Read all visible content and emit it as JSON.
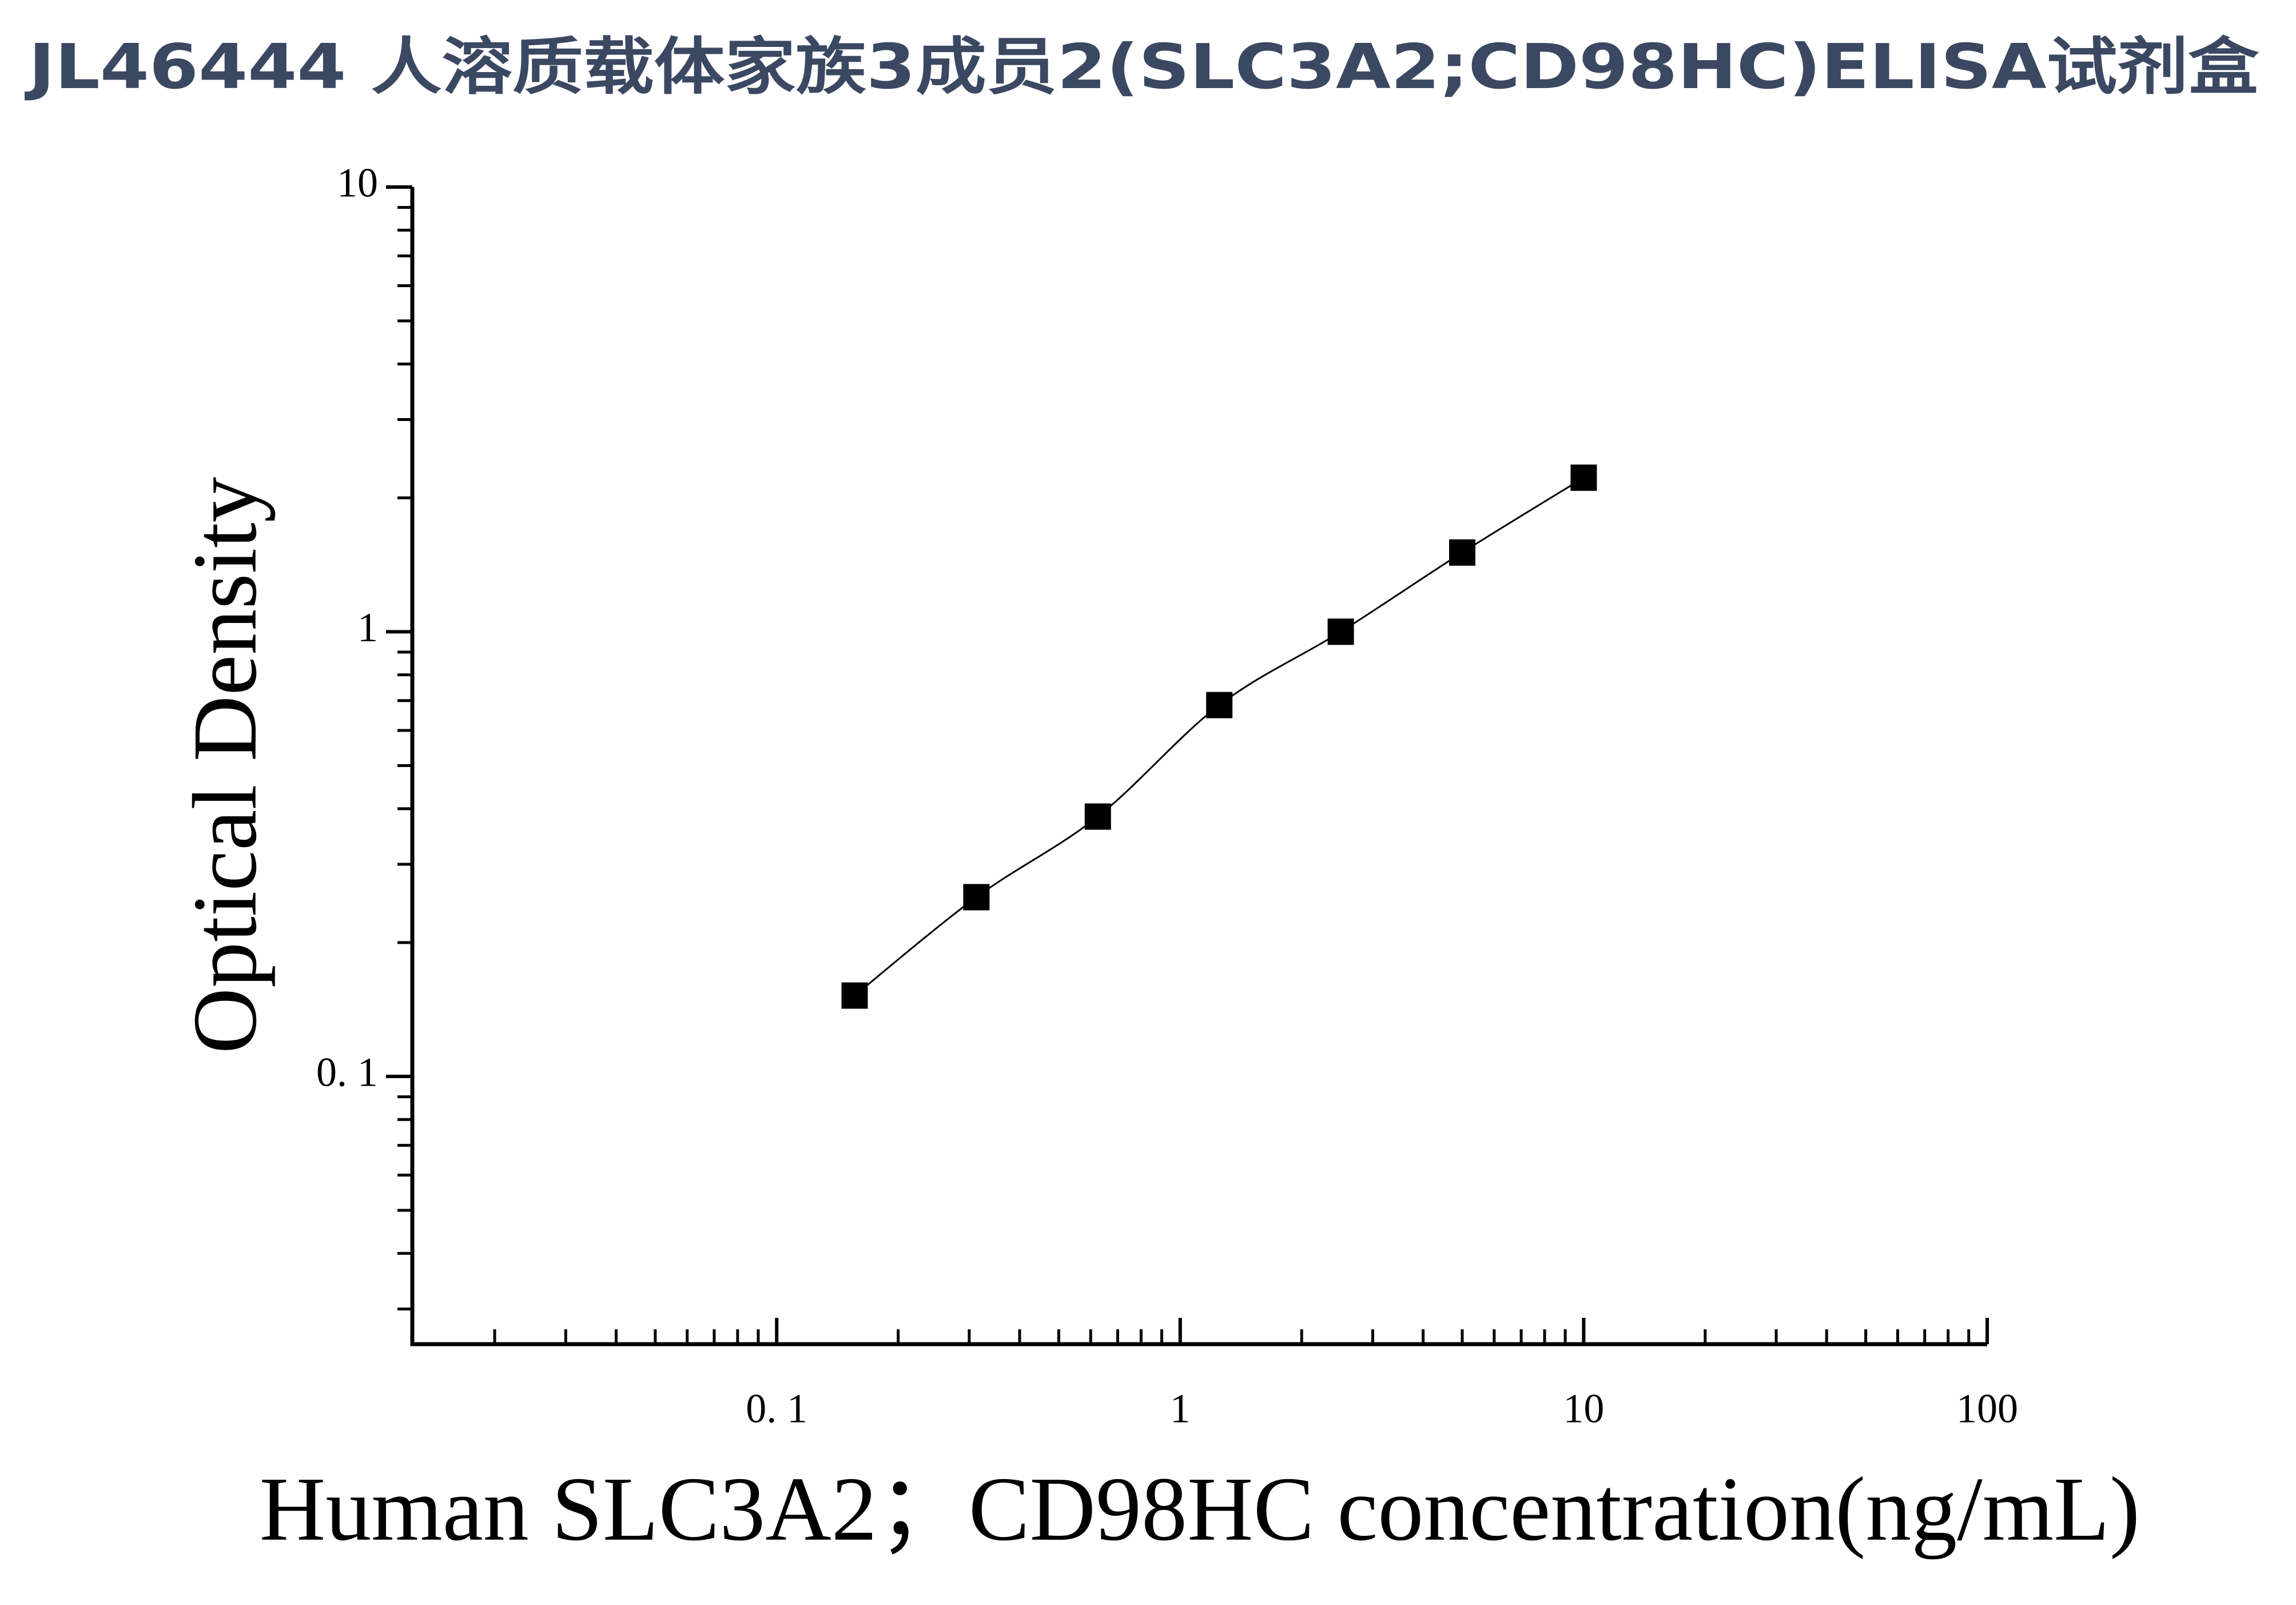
{
  "chart_data": {
    "type": "scatter",
    "title": "JL46444 人溶质载体家族3成员2(SLC3A2;CD98HC)ELISA试剂盒",
    "x_label": "Human SLC3A2；CD98HC concentration(ng/mL)",
    "y_label": "Optical Density",
    "x_log": true,
    "y_log": true,
    "xlim": [
      0.0125,
      100
    ],
    "ylim": [
      0.025,
      10
    ],
    "xticks": [
      {
        "value": 0.1,
        "label": "0. 1"
      },
      1,
      10,
      100
    ],
    "yticks": [
      {
        "value": 0.1,
        "label": "0. 1"
      },
      1,
      10
    ],
    "fit_line": true,
    "series": [
      {
        "color": "#000000",
        "x": [
          0.156,
          0.3125,
          0.625,
          1.25,
          2.5,
          5,
          10
        ],
        "values": [
          0.152,
          0.253,
          0.384,
          0.684,
          1.0,
          1.507,
          2.22
        ]
      }
    ]
  }
}
